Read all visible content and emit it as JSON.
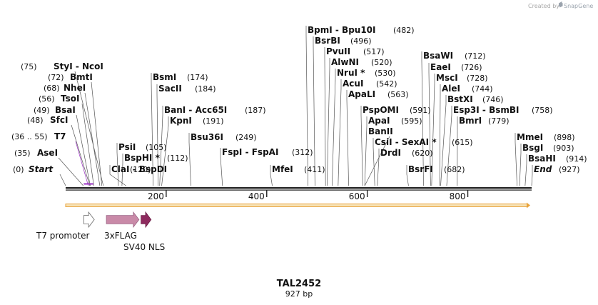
{
  "credit": {
    "prefix": "Created by",
    "brand": "SnapGene"
  },
  "plasmid": {
    "name": "TAL2452",
    "size_label": "927 bp",
    "length_bp": 927
  },
  "axis": {
    "ticks": [
      {
        "bp": 200,
        "label": "200"
      },
      {
        "bp": 400,
        "label": "400"
      },
      {
        "bp": 600,
        "label": "600"
      },
      {
        "bp": 800,
        "label": "800"
      }
    ]
  },
  "colors": {
    "accent": "#9b30c4",
    "orf": "#e8a33c",
    "t7": "#ffffff",
    "flag": "#c98aa8",
    "nls": "#8e2a5e",
    "line": "#222222"
  },
  "sites": [
    {
      "id": "start",
      "name": "Start",
      "pos": "(0)",
      "bp": 0,
      "style": "italic"
    },
    {
      "id": "asei",
      "name": "AseI",
      "pos": "(35)",
      "bp": 35
    },
    {
      "id": "t7",
      "name": "T7",
      "pos": "(36 .. 55)",
      "bp": 45,
      "style": "primer"
    },
    {
      "id": "sfci",
      "name": "SfcI",
      "pos": "(48)",
      "bp": 48
    },
    {
      "id": "bsai",
      "name": "BsaI",
      "pos": "(49)",
      "bp": 49
    },
    {
      "id": "tsoi",
      "name": "TsoI",
      "pos": "(56)",
      "bp": 56
    },
    {
      "id": "nhei",
      "name": "NheI",
      "pos": "(68)",
      "bp": 68
    },
    {
      "id": "bmti",
      "name": "BmtI",
      "pos": "(72)",
      "bp": 72
    },
    {
      "id": "styi",
      "name": "StyI - NcoI",
      "pos": "(75)",
      "bp": 75
    },
    {
      "id": "clai",
      "name": "ClaI - BspDI",
      "pos": "(120)",
      "bp": 120
    },
    {
      "id": "bsphi",
      "name": "BspHI *",
      "pos": "(112)",
      "bp": 112
    },
    {
      "id": "psii",
      "name": "PsiI",
      "pos": "(105)",
      "bp": 105
    },
    {
      "id": "bsmi",
      "name": "BsmI",
      "pos": "(174)",
      "bp": 174
    },
    {
      "id": "sacii",
      "name": "SacII",
      "pos": "(184)",
      "bp": 184
    },
    {
      "id": "bani",
      "name": "BanI - Acc65I",
      "pos": "(187)",
      "bp": 187
    },
    {
      "id": "kpni",
      "name": "KpnI",
      "pos": "(191)",
      "bp": 191
    },
    {
      "id": "bsu36i",
      "name": "Bsu36I",
      "pos": "(249)",
      "bp": 249
    },
    {
      "id": "fspi",
      "name": "FspI - FspAI",
      "pos": "(312)",
      "bp": 312
    },
    {
      "id": "mfei",
      "name": "MfeI",
      "pos": "(411)",
      "bp": 411
    },
    {
      "id": "bpmi",
      "name": "BpmI - Bpu10I",
      "pos": "(482)",
      "bp": 482
    },
    {
      "id": "bsrbi",
      "name": "BsrBI",
      "pos": "(496)",
      "bp": 496
    },
    {
      "id": "pvuii",
      "name": "PvuII",
      "pos": "(517)",
      "bp": 517
    },
    {
      "id": "alwni",
      "name": "AlwNI",
      "pos": "(520)",
      "bp": 520
    },
    {
      "id": "nrui",
      "name": "NruI *",
      "pos": "(530)",
      "bp": 530
    },
    {
      "id": "acui",
      "name": "AcuI",
      "pos": "(542)",
      "bp": 542
    },
    {
      "id": "apali",
      "name": "ApaLI",
      "pos": "(563)",
      "bp": 563
    },
    {
      "id": "pspomi",
      "name": "PspOMI",
      "pos": "(591)",
      "bp": 591
    },
    {
      "id": "apai",
      "name": "ApaI",
      "pos": "(595)",
      "bp": 595
    },
    {
      "id": "banii",
      "name": "BanII",
      "pos": "",
      "bp": 595
    },
    {
      "id": "csii",
      "name": "CsiI - SexAI *",
      "pos": "(615)",
      "bp": 615
    },
    {
      "id": "drdi",
      "name": "DrdI",
      "pos": "(620)",
      "bp": 620
    },
    {
      "id": "bsrfi",
      "name": "BsrFI",
      "pos": "(682)",
      "bp": 682
    },
    {
      "id": "bsawi",
      "name": "BsaWI",
      "pos": "(712)",
      "bp": 712
    },
    {
      "id": "eaei",
      "name": "EaeI",
      "pos": "(726)",
      "bp": 726
    },
    {
      "id": "msci",
      "name": "MscI",
      "pos": "(728)",
      "bp": 728
    },
    {
      "id": "alei",
      "name": "AleI",
      "pos": "(744)",
      "bp": 744
    },
    {
      "id": "bstxi",
      "name": "BstXI",
      "pos": "(746)",
      "bp": 746
    },
    {
      "id": "esp3i",
      "name": "Esp3I - BsmBI",
      "pos": "(758)",
      "bp": 758
    },
    {
      "id": "bmri",
      "name": "BmrI",
      "pos": "(779)",
      "bp": 779
    },
    {
      "id": "mmei",
      "name": "MmeI",
      "pos": "(898)",
      "bp": 898
    },
    {
      "id": "bsgi",
      "name": "BsgI",
      "pos": "(903)",
      "bp": 903
    },
    {
      "id": "bsahi",
      "name": "BsaHI",
      "pos": "(914)",
      "bp": 914
    },
    {
      "id": "end",
      "name": "End",
      "pos": "(927)",
      "bp": 927,
      "style": "italic"
    }
  ],
  "features": [
    {
      "id": "t7-promoter",
      "label": "T7 promoter",
      "start_bp": 36,
      "end_bp": 55
    },
    {
      "id": "3xflag",
      "label": "3xFLAG",
      "start_bp": 81,
      "end_bp": 146
    },
    {
      "id": "sv40-nls",
      "label": "SV40 NLS",
      "start_bp": 150,
      "end_bp": 170
    }
  ],
  "orf": {
    "start_bp": 0,
    "end_bp": 927,
    "direction": "forward"
  }
}
